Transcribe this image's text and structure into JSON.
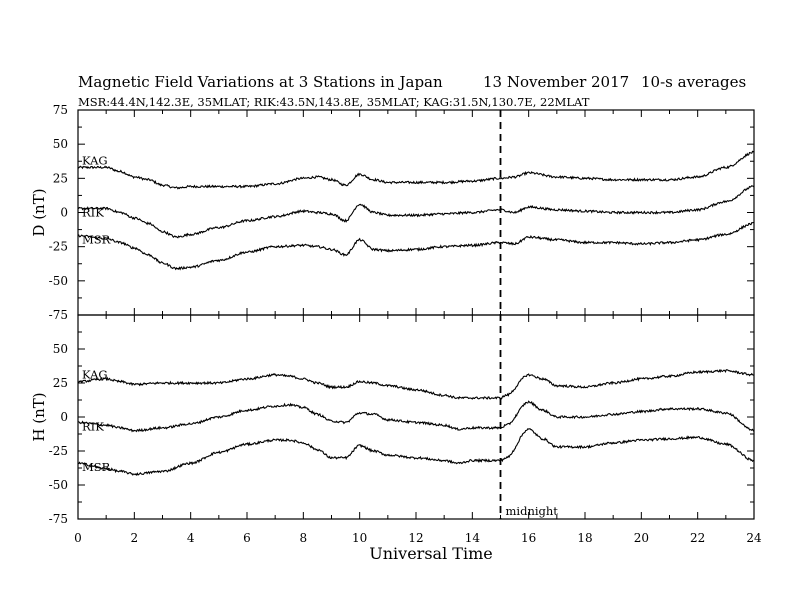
{
  "chart_data": {
    "type": "line",
    "title": "Magnetic Field Variations at 3 Stations in Japan",
    "date": "13 November 2017",
    "averaging": "10-s averages",
    "subtitle": "MSR:44.4N,142.3E, 35MLAT;  RIK:43.5N,143.8E, 35MLAT;  KAG:31.5N,130.7E, 22MLAT",
    "xlabel": "Universal Time",
    "xlim": [
      0,
      24
    ],
    "xticks": [
      0,
      2,
      4,
      6,
      8,
      10,
      12,
      14,
      16,
      18,
      20,
      22,
      24
    ],
    "marker": {
      "x": 15,
      "label": "midnight",
      "style": "dashed"
    },
    "panels": [
      {
        "ylabel": "D (nT)",
        "ylim": [
          -75,
          75
        ],
        "yticks": [
          75,
          50,
          25,
          0,
          -25,
          -50,
          -75
        ],
        "series": [
          {
            "name": "KAG",
            "points": [
              [
                0,
                33
              ],
              [
                1,
                33
              ],
              [
                1.5,
                30
              ],
              [
                2,
                26
              ],
              [
                2.5,
                24
              ],
              [
                3,
                20
              ],
              [
                3.5,
                18
              ],
              [
                4,
                19
              ],
              [
                5,
                19
              ],
              [
                6,
                19
              ],
              [
                7,
                21
              ],
              [
                8,
                25
              ],
              [
                8.5,
                26
              ],
              [
                9,
                24
              ],
              [
                9.5,
                20
              ],
              [
                10,
                28
              ],
              [
                10.5,
                24
              ],
              [
                11,
                22
              ],
              [
                12,
                22
              ],
              [
                13,
                22
              ],
              [
                14,
                23
              ],
              [
                15,
                25
              ],
              [
                15.5,
                26
              ],
              [
                16,
                29
              ],
              [
                17,
                26
              ],
              [
                18,
                25
              ],
              [
                19,
                24
              ],
              [
                20,
                24
              ],
              [
                21,
                24
              ],
              [
                22,
                26
              ],
              [
                23,
                33
              ],
              [
                24,
                44
              ]
            ]
          },
          {
            "name": "RIK",
            "points": [
              [
                0,
                3
              ],
              [
                1,
                3
              ],
              [
                1.5,
                0
              ],
              [
                2,
                -4
              ],
              [
                2.5,
                -8
              ],
              [
                3,
                -14
              ],
              [
                3.5,
                -18
              ],
              [
                4,
                -16
              ],
              [
                5,
                -11
              ],
              [
                6,
                -6
              ],
              [
                7,
                -3
              ],
              [
                8,
                1
              ],
              [
                8.5,
                0
              ],
              [
                9,
                -1
              ],
              [
                9.5,
                -6
              ],
              [
                10,
                6
              ],
              [
                10.5,
                0
              ],
              [
                11,
                -2
              ],
              [
                12,
                -2
              ],
              [
                13,
                -1
              ],
              [
                14,
                0
              ],
              [
                15,
                2
              ],
              [
                15.5,
                0
              ],
              [
                16,
                4
              ],
              [
                17,
                2
              ],
              [
                18,
                1
              ],
              [
                19,
                0
              ],
              [
                20,
                0
              ],
              [
                21,
                0
              ],
              [
                22,
                2
              ],
              [
                23,
                8
              ],
              [
                24,
                19
              ]
            ]
          },
          {
            "name": "MSR",
            "points": [
              [
                0,
                -17
              ],
              [
                1,
                -19
              ],
              [
                1.5,
                -22
              ],
              [
                2,
                -26
              ],
              [
                2.5,
                -31
              ],
              [
                3,
                -37
              ],
              [
                3.5,
                -41
              ],
              [
                4,
                -40
              ],
              [
                5,
                -35
              ],
              [
                6,
                -29
              ],
              [
                7,
                -25
              ],
              [
                8,
                -24
              ],
              [
                8.5,
                -25
              ],
              [
                9,
                -27
              ],
              [
                9.5,
                -31
              ],
              [
                10,
                -20
              ],
              [
                10.5,
                -27
              ],
              [
                11,
                -28
              ],
              [
                12,
                -27
              ],
              [
                13,
                -25
              ],
              [
                14,
                -24
              ],
              [
                15,
                -22
              ],
              [
                15.5,
                -23
              ],
              [
                16,
                -18
              ],
              [
                17,
                -20
              ],
              [
                18,
                -22
              ],
              [
                19,
                -22
              ],
              [
                20,
                -23
              ],
              [
                21,
                -22
              ],
              [
                22,
                -20
              ],
              [
                23,
                -16
              ],
              [
                24,
                -8
              ]
            ]
          }
        ]
      },
      {
        "ylabel": "H (nT)",
        "ylim": [
          -75,
          75
        ],
        "yticks": [
          75,
          50,
          25,
          0,
          -25,
          -50,
          -75
        ],
        "series": [
          {
            "name": "KAG",
            "points": [
              [
                0,
                26
              ],
              [
                1,
                28
              ],
              [
                1.5,
                26
              ],
              [
                2,
                24
              ],
              [
                3,
                25
              ],
              [
                4,
                25
              ],
              [
                5,
                25
              ],
              [
                6,
                28
              ],
              [
                7,
                31
              ],
              [
                7.5,
                30
              ],
              [
                8,
                28
              ],
              [
                8.5,
                25
              ],
              [
                9,
                22
              ],
              [
                9.5,
                22
              ],
              [
                10,
                26
              ],
              [
                10.5,
                25
              ],
              [
                11,
                23
              ],
              [
                12,
                20
              ],
              [
                13,
                16
              ],
              [
                13.5,
                14
              ],
              [
                14,
                14
              ],
              [
                15,
                14
              ],
              [
                15.2,
                16
              ],
              [
                16,
                31
              ],
              [
                16.5,
                28
              ],
              [
                17,
                23
              ],
              [
                18,
                22
              ],
              [
                19,
                25
              ],
              [
                20,
                28
              ],
              [
                21,
                30
              ],
              [
                22,
                33
              ],
              [
                23,
                34
              ],
              [
                24,
                31
              ]
            ]
          },
          {
            "name": "RIK",
            "points": [
              [
                0,
                -4
              ],
              [
                1,
                -6
              ],
              [
                1.5,
                -8
              ],
              [
                2,
                -10
              ],
              [
                3,
                -8
              ],
              [
                4,
                -5
              ],
              [
                5,
                0
              ],
              [
                6,
                5
              ],
              [
                7,
                8
              ],
              [
                7.5,
                9
              ],
              [
                8,
                7
              ],
              [
                8.5,
                2
              ],
              [
                9,
                -3
              ],
              [
                9.5,
                -4
              ],
              [
                10,
                3
              ],
              [
                10.5,
                2
              ],
              [
                11,
                -2
              ],
              [
                12,
                -4
              ],
              [
                13,
                -6
              ],
              [
                13.5,
                -9
              ],
              [
                14,
                -8
              ],
              [
                15,
                -8
              ],
              [
                15.2,
                -6
              ],
              [
                16,
                11
              ],
              [
                16.5,
                5
              ],
              [
                17,
                0
              ],
              [
                18,
                0
              ],
              [
                19,
                2
              ],
              [
                20,
                4
              ],
              [
                21,
                6
              ],
              [
                22,
                6
              ],
              [
                23,
                3
              ],
              [
                24,
                -10
              ]
            ]
          },
          {
            "name": "MSR",
            "points": [
              [
                0,
                -34
              ],
              [
                1,
                -38
              ],
              [
                1.5,
                -40
              ],
              [
                2,
                -42
              ],
              [
                3,
                -40
              ],
              [
                4,
                -34
              ],
              [
                5,
                -26
              ],
              [
                6,
                -20
              ],
              [
                7,
                -17
              ],
              [
                7.5,
                -17
              ],
              [
                8,
                -19
              ],
              [
                8.5,
                -24
              ],
              [
                9,
                -30
              ],
              [
                9.5,
                -30
              ],
              [
                10,
                -21
              ],
              [
                10.5,
                -25
              ],
              [
                11,
                -28
              ],
              [
                12,
                -30
              ],
              [
                13,
                -32
              ],
              [
                13.5,
                -34
              ],
              [
                14,
                -32
              ],
              [
                15,
                -32
              ],
              [
                15.2,
                -30
              ],
              [
                16,
                -9
              ],
              [
                16.5,
                -16
              ],
              [
                17,
                -22
              ],
              [
                18,
                -22
              ],
              [
                19,
                -19
              ],
              [
                20,
                -17
              ],
              [
                21,
                -16
              ],
              [
                22,
                -15
              ],
              [
                23,
                -20
              ],
              [
                24,
                -32
              ]
            ]
          }
        ]
      }
    ]
  }
}
